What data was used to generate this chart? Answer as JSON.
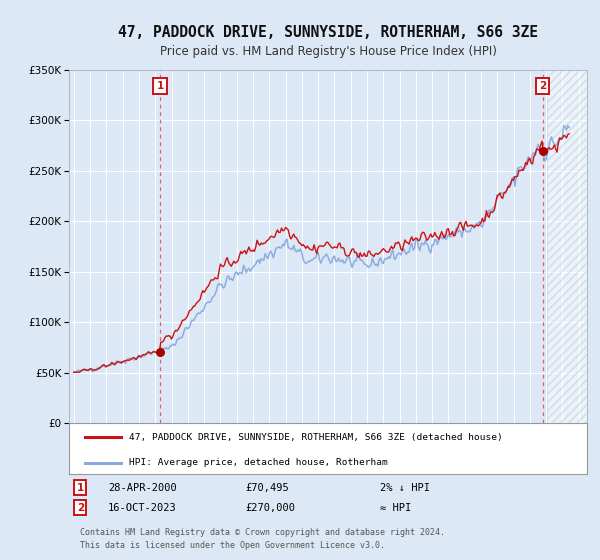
{
  "title": "47, PADDOCK DRIVE, SUNNYSIDE, ROTHERHAM, S66 3ZE",
  "subtitle": "Price paid vs. HM Land Registry's House Price Index (HPI)",
  "title_fontsize": 10.5,
  "subtitle_fontsize": 8.5,
  "bg_color": "#dce8f5",
  "plot_bg_color": "#dce8f5",
  "legend_bg_color": "#ffffff",
  "legend_label_red": "47, PADDOCK DRIVE, SUNNYSIDE, ROTHERHAM, S66 3ZE (detached house)",
  "legend_label_blue": "HPI: Average price, detached house, Rotherham",
  "sale1_date": "28-APR-2000",
  "sale1_price": 70495,
  "sale1_note": "2% ↓ HPI",
  "sale2_date": "16-OCT-2023",
  "sale2_price": 270000,
  "sale2_note": "≈ HPI",
  "footer": "Contains HM Land Registry data © Crown copyright and database right 2024.\nThis data is licensed under the Open Government Licence v3.0.",
  "ylim": [
    0,
    350000
  ],
  "yticks": [
    0,
    50000,
    100000,
    150000,
    200000,
    250000,
    300000,
    350000
  ],
  "xlim_start": 1994.7,
  "xlim_end": 2026.5,
  "xticks": [
    1995,
    1996,
    1997,
    1998,
    1999,
    2000,
    2001,
    2002,
    2003,
    2004,
    2005,
    2006,
    2007,
    2008,
    2009,
    2010,
    2011,
    2012,
    2013,
    2014,
    2015,
    2016,
    2017,
    2018,
    2019,
    2020,
    2021,
    2022,
    2023,
    2024,
    2025,
    2026
  ],
  "hpi_color": "#88aadd",
  "price_color": "#cc1111",
  "marker_color": "#aa0000",
  "vline_color": "#dd5555",
  "sale1_x": 2000.29,
  "sale2_x": 2023.79,
  "sale1_y": 70495,
  "sale2_y": 270000,
  "hatch_start": 2024.08,
  "hatch_end": 2026.5
}
